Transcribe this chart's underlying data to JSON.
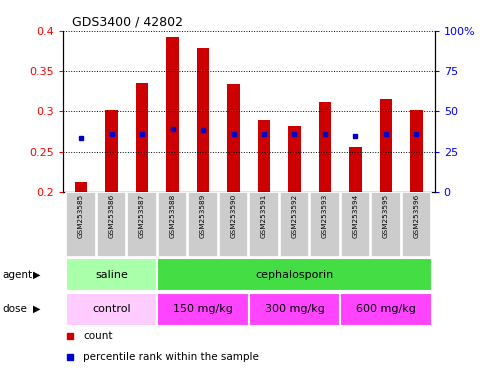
{
  "title": "GDS3400 / 42802",
  "categories": [
    "GSM253585",
    "GSM253586",
    "GSM253587",
    "GSM253588",
    "GSM253589",
    "GSM253590",
    "GSM253591",
    "GSM253592",
    "GSM253593",
    "GSM253594",
    "GSM253595",
    "GSM253596"
  ],
  "bar_heights": [
    0.212,
    0.302,
    0.335,
    0.392,
    0.379,
    0.334,
    0.289,
    0.282,
    0.312,
    0.256,
    0.315,
    0.302
  ],
  "percentile_values": [
    0.267,
    0.272,
    0.272,
    0.278,
    0.277,
    0.272,
    0.272,
    0.272,
    0.272,
    0.27,
    0.272,
    0.272
  ],
  "bar_color": "#CC0000",
  "percentile_color": "#0000CC",
  "ymin": 0.2,
  "ymax": 0.4,
  "yticks": [
    0.2,
    0.25,
    0.3,
    0.35,
    0.4
  ],
  "right_yticks": [
    0,
    25,
    50,
    75,
    100
  ],
  "right_ytick_labels": [
    "0",
    "25",
    "50",
    "75",
    "100%"
  ],
  "agent_labels": [
    {
      "text": "saline",
      "start": 0,
      "end": 3,
      "color": "#AAFFAA"
    },
    {
      "text": "cephalosporin",
      "start": 3,
      "end": 12,
      "color": "#44DD44"
    }
  ],
  "dose_labels": [
    {
      "text": "control",
      "start": 0,
      "end": 3,
      "color": "#FFCCFF"
    },
    {
      "text": "150 mg/kg",
      "start": 3,
      "end": 6,
      "color": "#FF44FF"
    },
    {
      "text": "300 mg/kg",
      "start": 6,
      "end": 9,
      "color": "#FF44FF"
    },
    {
      "text": "600 mg/kg",
      "start": 9,
      "end": 12,
      "color": "#FF44FF"
    }
  ],
  "legend_count_color": "#CC0000",
  "legend_percentile_color": "#0000CC",
  "tick_label_bg": "#CCCCCC",
  "grid_color": "#000000",
  "left_labels": [
    "agent",
    "dose"
  ],
  "bar_width": 0.4
}
